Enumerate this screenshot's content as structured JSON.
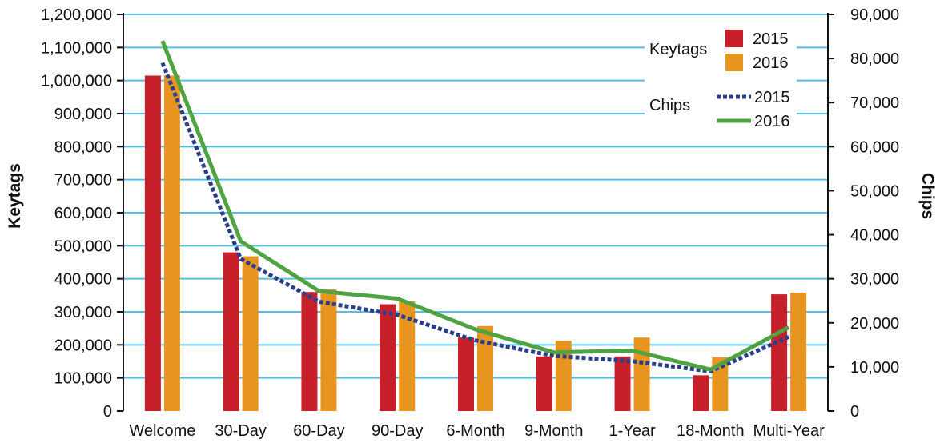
{
  "chart_data": {
    "type": "bar",
    "categories": [
      "Welcome",
      "30-Day",
      "60-Day",
      "90-Day",
      "6-Month",
      "9-Month",
      "1-Year",
      "18-Month",
      "Multi-Year"
    ],
    "ylabel": "Keytags",
    "y2label": "Chips",
    "ylim": [
      0,
      1200000
    ],
    "y2lim": [
      0,
      90000
    ],
    "yticks": [
      "0",
      "100,000",
      "200,000",
      "300,000",
      "400,000",
      "500,000",
      "600,000",
      "700,000",
      "800,000",
      "900,000",
      "1,000,000",
      "1,100,000",
      "1,200,000"
    ],
    "y2ticks": [
      "0",
      "10,000",
      "20,000",
      "30,000",
      "40,000",
      "50,000",
      "60,000",
      "70,000",
      "80,000",
      "90,000"
    ],
    "grid": true,
    "legend_position": "top-right",
    "legend": {
      "keytags_title": "Keytags",
      "chips_title": "Chips"
    },
    "bar_series": [
      {
        "name": "2015",
        "color": "#c8202a",
        "values": [
          1015000,
          480000,
          360000,
          323000,
          222000,
          165000,
          165000,
          108000,
          353000
        ]
      },
      {
        "name": "2016",
        "color": "#e8951f",
        "values": [
          1015000,
          468000,
          368000,
          332000,
          257000,
          212000,
          222000,
          162000,
          358000
        ]
      }
    ],
    "line_series": [
      {
        "name": "2015",
        "color": "#2a3f8c",
        "style": "dotted",
        "values": [
          79000,
          34500,
          24800,
          21800,
          16000,
          12500,
          11300,
          9000,
          16800
        ]
      },
      {
        "name": "2016",
        "color": "#4fa342",
        "style": "solid",
        "values": [
          84000,
          38500,
          27200,
          25500,
          18500,
          13300,
          13700,
          9400,
          19000
        ]
      }
    ]
  }
}
